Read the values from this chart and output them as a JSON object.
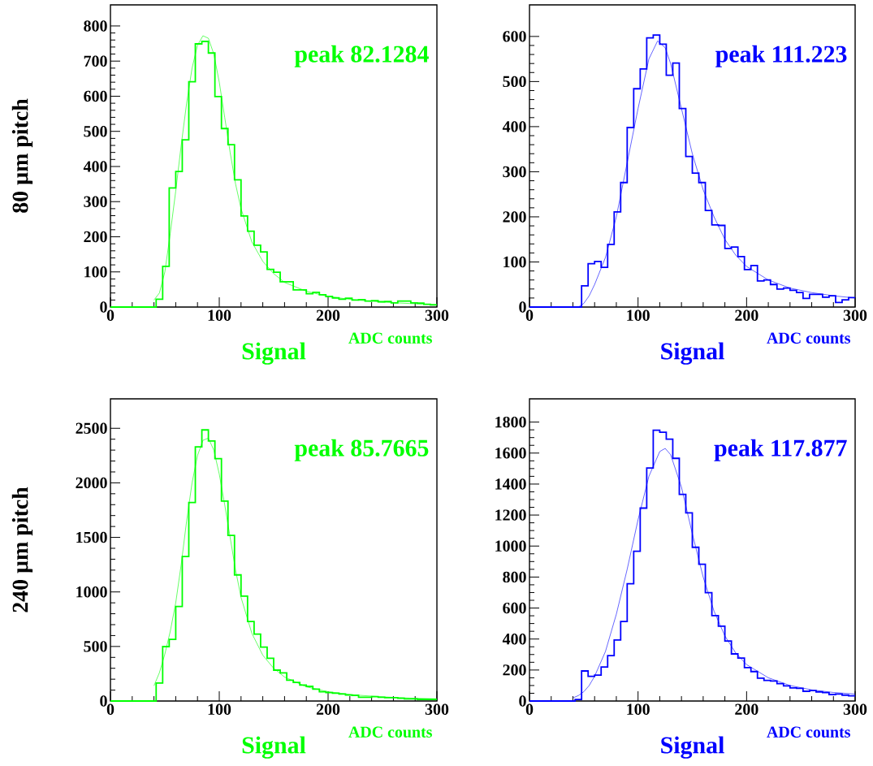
{
  "chart_data": [
    {
      "type": "histogram",
      "xlabel": "Signal",
      "ylabel": "80 µm pitch",
      "annotations": [
        "peak 82.1284",
        "ADC counts"
      ],
      "color": "#00ff00",
      "bins": [
        0,
        6,
        12,
        18,
        24,
        30,
        36,
        42,
        48,
        54,
        60,
        66,
        72,
        78,
        84,
        90,
        96,
        102,
        108,
        114,
        120,
        126,
        132,
        138,
        144,
        150,
        156,
        162,
        168,
        174,
        180,
        186,
        192,
        198,
        204,
        210,
        216,
        222,
        228,
        234,
        240,
        246,
        252,
        258,
        264,
        270,
        276,
        282,
        288,
        294,
        300
      ],
      "values": [
        0,
        0,
        0,
        0,
        0,
        0,
        0,
        22,
        116,
        339,
        386,
        476,
        641,
        749,
        756,
        723,
        599,
        508,
        462,
        362,
        259,
        216,
        176,
        157,
        107,
        99,
        72,
        72,
        49,
        49,
        38,
        42,
        35,
        30,
        26,
        22,
        25,
        20,
        21,
        17,
        18,
        15,
        16,
        12,
        17,
        17,
        12,
        11,
        8,
        6
      ],
      "series": [
        {
          "type": "line",
          "color": "#00ff00",
          "x": [
            40,
            45,
            50,
            55,
            60,
            65,
            70,
            75,
            80,
            85,
            90,
            95,
            100,
            105,
            110,
            115,
            120,
            130,
            140,
            150,
            160,
            180,
            200,
            225,
            250,
            275,
            300
          ],
          "values": [
            20,
            40,
            100,
            210,
            330,
            460,
            580,
            680,
            745,
            772,
            765,
            720,
            640,
            540,
            440,
            350,
            280,
            185,
            130,
            95,
            70,
            45,
            30,
            20,
            14,
            10,
            7
          ]
        }
      ],
      "xlim": [
        0,
        300
      ],
      "xticks": [
        0,
        100,
        200,
        300
      ],
      "ylim": [
        0,
        860
      ],
      "yticks": [
        0,
        100,
        200,
        300,
        400,
        500,
        600,
        700,
        800
      ]
    },
    {
      "type": "histogram",
      "xlabel": "Signal",
      "annotations": [
        "peak 111.223",
        "ADC counts"
      ],
      "color": "#0000ff",
      "bins": [
        0,
        6,
        12,
        18,
        24,
        30,
        36,
        42,
        48,
        54,
        60,
        66,
        72,
        78,
        84,
        90,
        96,
        102,
        108,
        114,
        120,
        126,
        132,
        138,
        144,
        150,
        156,
        162,
        168,
        174,
        180,
        186,
        192,
        198,
        204,
        210,
        216,
        222,
        228,
        234,
        240,
        246,
        252,
        258,
        264,
        270,
        276,
        282,
        288,
        294,
        300
      ],
      "values": [
        0,
        0,
        0,
        0,
        0,
        0,
        0,
        0,
        47,
        96,
        101,
        88,
        139,
        211,
        276,
        398,
        484,
        528,
        597,
        603,
        583,
        514,
        541,
        440,
        334,
        297,
        276,
        214,
        182,
        181,
        130,
        133,
        112,
        83,
        92,
        58,
        60,
        50,
        40,
        42,
        37,
        32,
        19,
        28,
        28,
        22,
        25,
        10,
        16,
        21
      ],
      "series": [
        {
          "type": "line",
          "color": "#0000ff",
          "x": [
            45,
            50,
            55,
            60,
            70,
            80,
            90,
            100,
            110,
            118,
            125,
            130,
            140,
            150,
            160,
            170,
            180,
            190,
            200,
            220,
            240,
            260,
            280,
            300
          ],
          "values": [
            0,
            8,
            25,
            50,
            110,
            200,
            320,
            440,
            550,
            590,
            575,
            540,
            440,
            340,
            260,
            200,
            150,
            115,
            90,
            60,
            42,
            32,
            25,
            20
          ]
        }
      ],
      "xlim": [
        0,
        300
      ],
      "xticks": [
        0,
        100,
        200,
        300
      ],
      "ylim": [
        0,
        670
      ],
      "yticks": [
        0,
        100,
        200,
        300,
        400,
        500,
        600
      ]
    },
    {
      "type": "histogram",
      "xlabel": "Signal",
      "ylabel": "240 µm pitch",
      "annotations": [
        "peak 85.7665",
        "ADC counts"
      ],
      "color": "#00ff00",
      "bins": [
        0,
        6,
        12,
        18,
        24,
        30,
        36,
        42,
        48,
        54,
        60,
        66,
        72,
        78,
        84,
        90,
        96,
        102,
        108,
        114,
        120,
        126,
        132,
        138,
        144,
        150,
        156,
        162,
        168,
        174,
        180,
        186,
        192,
        198,
        204,
        210,
        216,
        222,
        228,
        234,
        240,
        246,
        252,
        258,
        264,
        270,
        276,
        282,
        288,
        294,
        300
      ],
      "values": [
        0,
        0,
        0,
        0,
        0,
        0,
        0,
        164,
        499,
        565,
        866,
        1324,
        1820,
        2329,
        2485,
        2383,
        2222,
        1833,
        1518,
        1156,
        962,
        729,
        613,
        494,
        392,
        283,
        258,
        191,
        171,
        146,
        134,
        109,
        84,
        77,
        72,
        64,
        55,
        52,
        35,
        35,
        40,
        35,
        30,
        30,
        25,
        20,
        20,
        15,
        15,
        15
      ],
      "series": [
        {
          "type": "line",
          "color": "#00ff00",
          "x": [
            40,
            45,
            50,
            55,
            60,
            65,
            70,
            75,
            80,
            85,
            90,
            95,
            100,
            105,
            110,
            115,
            120,
            130,
            140,
            150,
            160,
            180,
            200,
            225,
            250,
            275,
            300
          ],
          "values": [
            140,
            260,
            430,
            640,
            900,
            1250,
            1650,
            2000,
            2250,
            2390,
            2410,
            2300,
            2080,
            1800,
            1500,
            1200,
            950,
            620,
            420,
            300,
            220,
            130,
            85,
            55,
            38,
            27,
            20
          ]
        }
      ],
      "xlim": [
        0,
        300
      ],
      "xticks": [
        0,
        100,
        200,
        300
      ],
      "ylim": [
        0,
        2770
      ],
      "yticks": [
        0,
        500,
        1000,
        1500,
        2000,
        2500
      ]
    },
    {
      "type": "histogram",
      "xlabel": "Signal",
      "annotations": [
        "peak 117.877",
        "ADC counts"
      ],
      "color": "#0000ff",
      "bins": [
        0,
        6,
        12,
        18,
        24,
        30,
        36,
        42,
        48,
        54,
        60,
        66,
        72,
        78,
        84,
        90,
        96,
        102,
        108,
        114,
        120,
        126,
        132,
        138,
        144,
        150,
        156,
        162,
        168,
        174,
        180,
        186,
        192,
        198,
        204,
        210,
        216,
        222,
        228,
        234,
        240,
        246,
        252,
        258,
        264,
        270,
        276,
        282,
        288,
        294,
        300
      ],
      "values": [
        0,
        0,
        0,
        0,
        0,
        0,
        0,
        10,
        194,
        159,
        167,
        220,
        293,
        394,
        513,
        757,
        966,
        1245,
        1504,
        1748,
        1734,
        1690,
        1566,
        1333,
        1214,
        992,
        883,
        699,
        551,
        483,
        387,
        304,
        277,
        216,
        190,
        147,
        133,
        129,
        112,
        98,
        85,
        82,
        63,
        68,
        59,
        54,
        42,
        45,
        38,
        33
      ],
      "series": [
        {
          "type": "line",
          "color": "#0000ff",
          "x": [
            40,
            45,
            50,
            55,
            60,
            70,
            80,
            90,
            100,
            110,
            120,
            125,
            130,
            140,
            150,
            160,
            170,
            180,
            190,
            200,
            220,
            240,
            260,
            280,
            300
          ],
          "values": [
            20,
            35,
            60,
            100,
            160,
            320,
            560,
            850,
            1170,
            1450,
            1610,
            1630,
            1590,
            1380,
            1080,
            800,
            580,
            420,
            310,
            235,
            150,
            100,
            72,
            55,
            45
          ]
        }
      ],
      "xlim": [
        0,
        300
      ],
      "xticks": [
        0,
        100,
        200,
        300
      ],
      "ylim": [
        0,
        1950
      ],
      "yticks": [
        0,
        200,
        400,
        600,
        800,
        1000,
        1200,
        1400,
        1600,
        1800
      ]
    }
  ]
}
